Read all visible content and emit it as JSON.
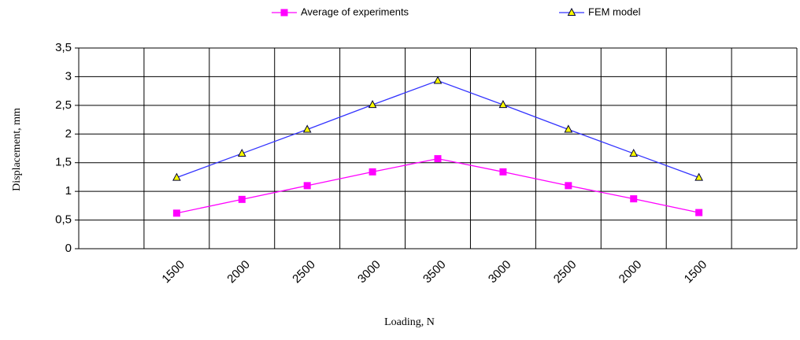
{
  "chart_data": {
    "type": "line",
    "x_label": "Loading, N",
    "y_label": "Displacement, mm",
    "categories": [
      null,
      "1500",
      "2000",
      "2500",
      "3000",
      "3500",
      "3000",
      "2500",
      "2000",
      "1500",
      null
    ],
    "series": [
      {
        "name": "Average of experiments",
        "color": "#ff00ff",
        "marker": "square",
        "values": [
          null,
          0.62,
          0.86,
          1.1,
          1.34,
          1.57,
          1.34,
          1.1,
          0.87,
          0.63,
          null
        ]
      },
      {
        "name": "FEM model",
        "color": "#3333ff",
        "marker": "triangle",
        "values": [
          null,
          1.24,
          1.66,
          2.08,
          2.51,
          2.93,
          2.51,
          2.08,
          1.66,
          1.24,
          null
        ]
      }
    ],
    "ylim": [
      0,
      3.5
    ],
    "yticks": [
      0,
      {
        "value": 0.5,
        "label": "0,5"
      },
      1,
      {
        "value": 1.5,
        "label": "1,5"
      },
      2,
      {
        "value": 2.5,
        "label": "2,5"
      },
      3,
      {
        "value": 3.5,
        "label": "3,5"
      }
    ],
    "grid": true,
    "legend": "top"
  }
}
